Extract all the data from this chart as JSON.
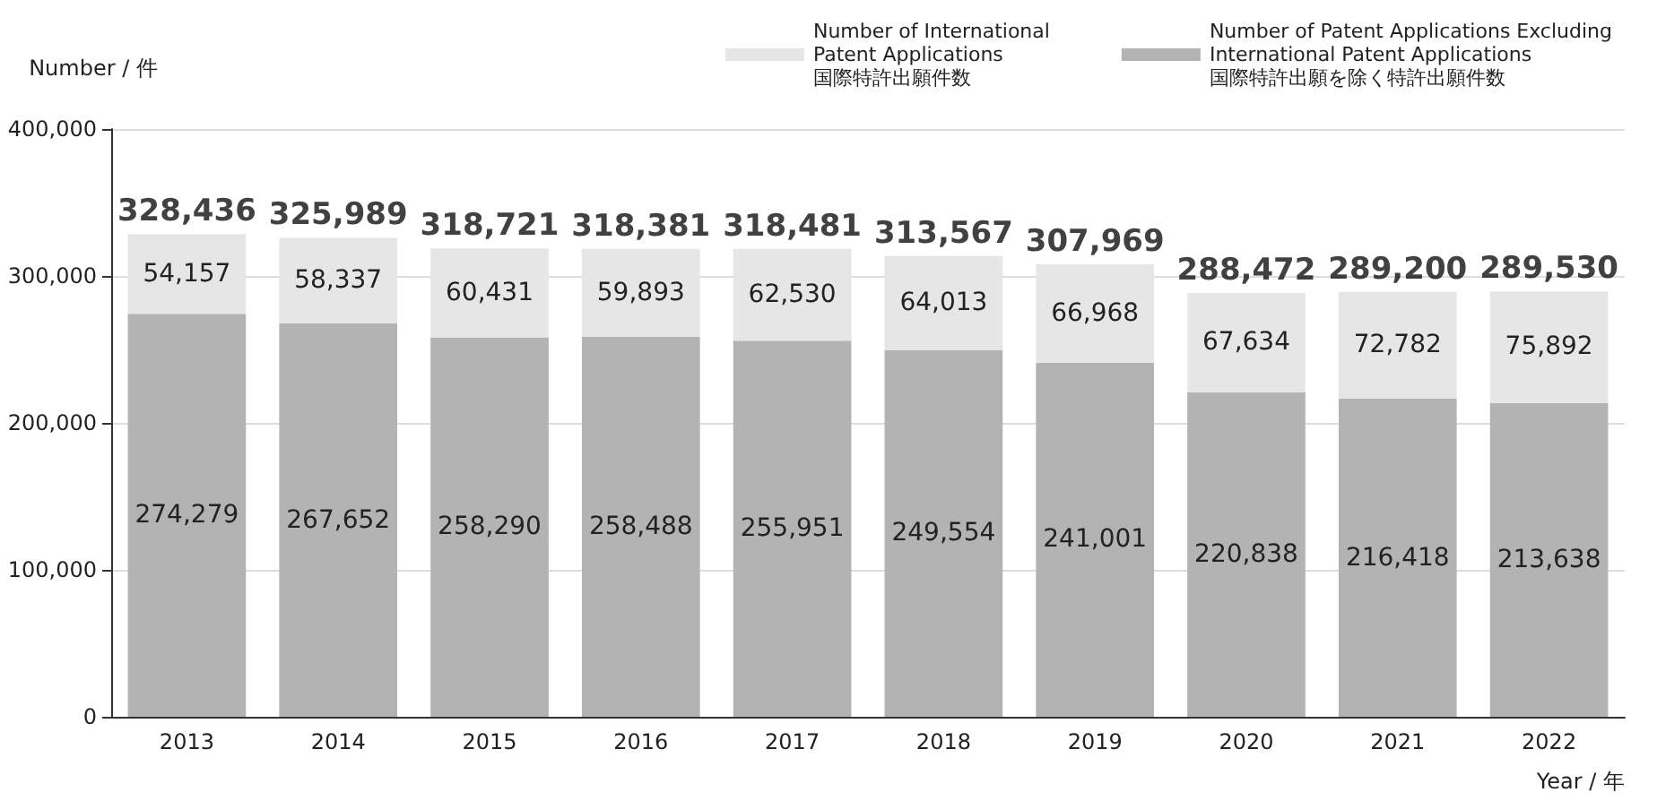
{
  "chart_data": {
    "type": "bar",
    "stacked": true,
    "xlabel": "Year / 年",
    "ylabel": "Number / 件",
    "categories": [
      "2013",
      "2014",
      "2015",
      "2016",
      "2017",
      "2018",
      "2019",
      "2020",
      "2021",
      "2022"
    ],
    "series": [
      {
        "name": "Number of Patent Applications Excluding\nInternational Patent Applications\n国際特許出願を除く特許出願件数",
        "color": "#b3b3b3",
        "values": [
          274279,
          267652,
          258290,
          258488,
          255951,
          249554,
          241001,
          220838,
          216418,
          213638
        ],
        "value_labels": [
          "274,279",
          "267,652",
          "258,290",
          "258,488",
          "255,951",
          "249,554",
          "241,001",
          "220,838",
          "216,418",
          "213,638"
        ]
      },
      {
        "name": "Number of International\nPatent Applications\n国際特許出願件数",
        "color": "#e6e6e6",
        "values": [
          54157,
          58337,
          60431,
          59893,
          62530,
          64013,
          66968,
          67634,
          72782,
          75892
        ],
        "value_labels": [
          "54,157",
          "58,337",
          "60,431",
          "59,893",
          "62,530",
          "64,013",
          "66,968",
          "67,634",
          "72,782",
          "75,892"
        ]
      }
    ],
    "totals": [
      "328,436",
      "325,989",
      "318,721",
      "318,381",
      "318,481",
      "313,567",
      "307,969",
      "288,472",
      "289,200",
      "289,530"
    ],
    "ylim": [
      0,
      400000
    ],
    "yticks": [
      {
        "value": 0,
        "label": "0"
      },
      {
        "value": 100000,
        "label": "100,000"
      },
      {
        "value": 200000,
        "label": "200,000"
      },
      {
        "value": 300000,
        "label": "300,000"
      },
      {
        "value": 400000,
        "label": "400,000"
      }
    ],
    "grid": "y",
    "legend": "top right"
  }
}
